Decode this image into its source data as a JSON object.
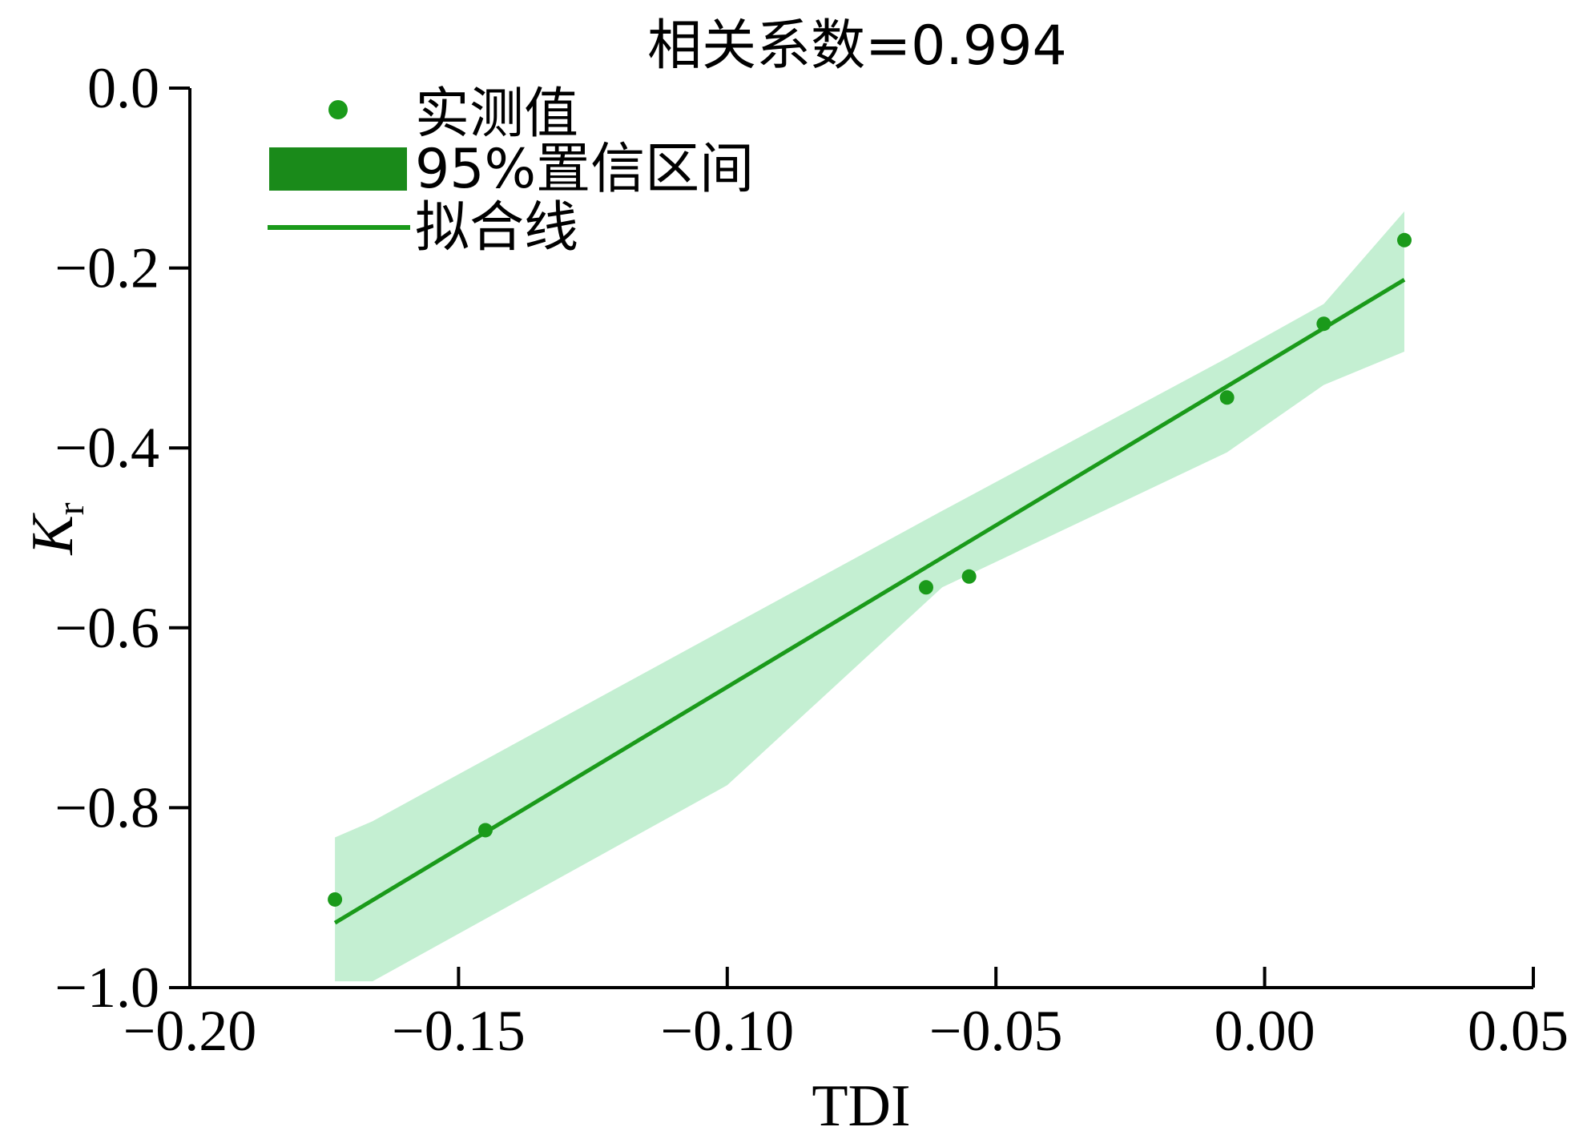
{
  "chart_data": {
    "type": "scatter",
    "title": "相关系数=0.994",
    "xlabel": "TDI",
    "ylabel": {
      "main": "K",
      "sub": "r"
    },
    "xlim": [
      -0.2,
      0.05
    ],
    "ylim": [
      -1.0,
      0.0
    ],
    "x_ticks": [
      -0.2,
      -0.15,
      -0.1,
      -0.05,
      0.0,
      0.05
    ],
    "x_tick_labels": [
      "−0.20",
      "−0.15",
      "−0.10",
      "−0.05",
      "0.00",
      "0.05"
    ],
    "y_ticks": [
      0.0,
      -0.2,
      -0.4,
      -0.6,
      -0.8,
      -1.0
    ],
    "y_tick_labels": [
      "0.0",
      "−0.2",
      "−0.4",
      "−0.6",
      "−0.8",
      "−1.0"
    ],
    "grid": false,
    "legend_position": "top-left",
    "legend": [
      "实测值",
      "95%置信区间",
      "拟合线"
    ],
    "colors": {
      "points": "#1a9a1a",
      "fit_line": "#1a9a1a",
      "band": "#c4efd2",
      "legend_band": "#1a8a1a"
    },
    "points": [
      {
        "x": -0.173,
        "y": -0.902
      },
      {
        "x": -0.145,
        "y": -0.825
      },
      {
        "x": -0.063,
        "y": -0.555
      },
      {
        "x": -0.055,
        "y": -0.543
      },
      {
        "x": -0.007,
        "y": -0.344
      },
      {
        "x": 0.011,
        "y": -0.262
      },
      {
        "x": 0.026,
        "y": -0.169
      }
    ],
    "fit_line": {
      "x": [
        -0.173,
        0.026
      ],
      "y": [
        -0.928,
        -0.213
      ]
    },
    "confidence_band": {
      "x": [
        -0.173,
        -0.166,
        -0.1,
        -0.06,
        -0.007,
        0.011,
        0.026
      ],
      "upper": [
        -0.833,
        -0.815,
        -0.6,
        -0.47,
        -0.3,
        -0.24,
        -0.137
      ],
      "lower": [
        -0.993,
        -0.993,
        -0.775,
        -0.555,
        -0.405,
        -0.33,
        -0.293
      ]
    }
  }
}
